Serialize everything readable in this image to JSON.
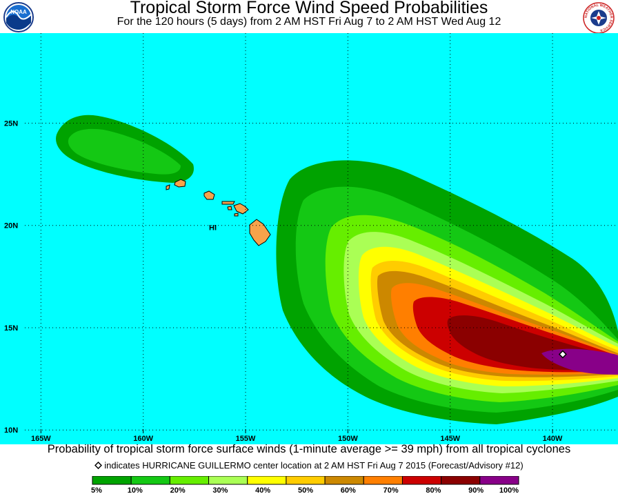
{
  "header": {
    "title": "Tropical Storm Force Wind Speed Probabilities",
    "subtitle": "For the 120 hours (5 days) from 2 AM HST Fri Aug 7 to 2 AM HST Wed Aug 12",
    "logo_left_text": "NOAA",
    "logo_right_text": "NATIONAL WEATHER SERVICE"
  },
  "map": {
    "ocean_color": "#00ffff",
    "land_color": "#f6a34b",
    "region_label": "HI",
    "lon_labels": [
      "165W",
      "160W",
      "155W",
      "150W",
      "145W",
      "140W"
    ],
    "lat_labels": [
      "25N",
      "20N",
      "15N",
      "10N"
    ],
    "lon_range": [
      -167,
      -136.8
    ],
    "lat_range": [
      9.3,
      29.4
    ],
    "storm_center": {
      "lon": -139.5,
      "lat": 13.7,
      "icon": "diamond-icon"
    }
  },
  "footer": {
    "caption": "Probability of tropical storm force surface winds (1-minute average >= 39 mph) from all tropical cyclones",
    "note": "indicates HURRICANE GUILLERMO center location at 2 AM HST Fri Aug 7 2015 (Forecast/Advisory #12)"
  },
  "legend": {
    "labels": [
      "5%",
      "10%",
      "20%",
      "30%",
      "40%",
      "50%",
      "60%",
      "70%",
      "80%",
      "90%",
      "100%"
    ],
    "colors": [
      "#00a300",
      "#14c814",
      "#66ee00",
      "#aaff55",
      "#ffff00",
      "#ffcc00",
      "#cc8800",
      "#ff7f00",
      "#cc0000",
      "#8b0000",
      "#880088"
    ]
  }
}
